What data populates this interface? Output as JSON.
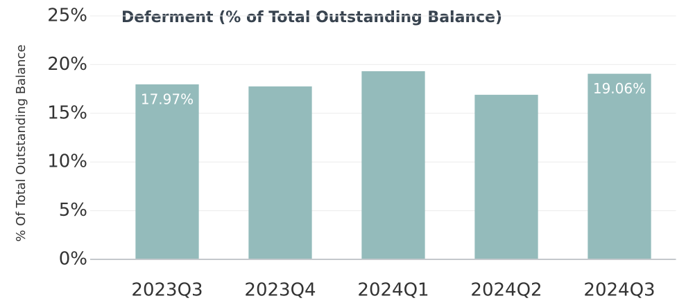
{
  "chart_data": {
    "type": "bar",
    "title": "Deferment (% of Total Outstanding Balance)",
    "y_label": "% Of Total Outstanding Balance",
    "categories": [
      "2023Q3",
      "2023Q4",
      "2024Q1",
      "2024Q2",
      "2024Q3"
    ],
    "values": [
      17.97,
      17.76,
      19.32,
      16.9,
      19.06
    ],
    "value_labels": [
      "17.97%",
      null,
      null,
      null,
      "19.06%"
    ],
    "color": "#94bbbb",
    "ylim": [
      0,
      25
    ],
    "yticks": [
      {
        "value": 0,
        "label": "0%"
      },
      {
        "value": 5,
        "label": "5%"
      },
      {
        "value": 10,
        "label": "10%"
      },
      {
        "value": 15,
        "label": "15%"
      },
      {
        "value": 20,
        "label": "20%"
      },
      {
        "value": 25,
        "label": "25%"
      }
    ],
    "grid": true
  }
}
